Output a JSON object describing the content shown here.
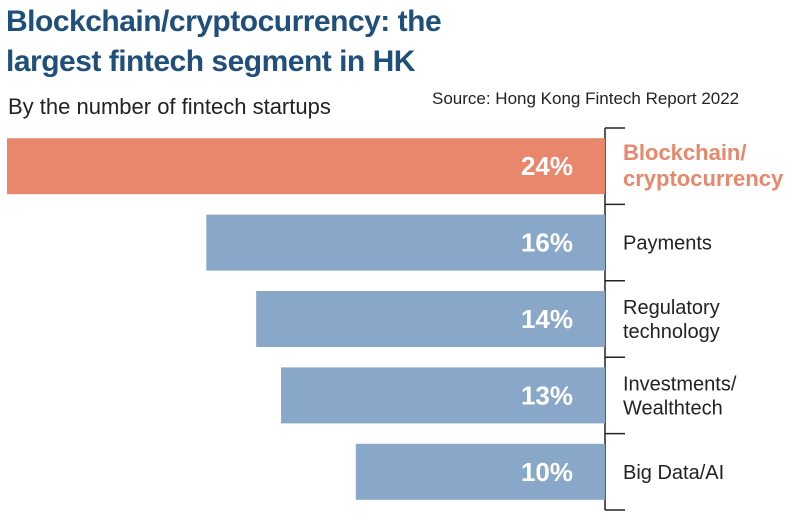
{
  "header": {
    "title_line1": "Blockchain/cryptocurrency: the",
    "title_line2": "largest fintech segment in HK",
    "subtitle": "By the number of fintech startups",
    "source": "Source: Hong Kong Fintech Report 2022"
  },
  "colors": {
    "highlight_bar": "#e8876c",
    "highlight_label": "#e8876c",
    "bar": "#89a7c8",
    "label": "#222222",
    "axis": "#222222"
  },
  "chart_data": {
    "type": "bar",
    "orientation": "horizontal",
    "title": "Blockchain/cryptocurrency: the largest fintech segment in HK",
    "subtitle": "By the number of fintech startups",
    "categories": [
      [
        "Blockchain/",
        "cryptocurrency"
      ],
      [
        "Payments"
      ],
      [
        "Regulatory",
        "technology"
      ],
      [
        "Investments/",
        "Wealthtech"
      ],
      [
        "Big Data/AI"
      ]
    ],
    "values": [
      24,
      16,
      14,
      13,
      10
    ],
    "value_labels": [
      "24%",
      "16%",
      "14%",
      "13%",
      "10%"
    ],
    "unit": "%",
    "highlight_index": 0,
    "xlim": [
      0,
      24
    ],
    "grid": false,
    "legend": "none"
  }
}
